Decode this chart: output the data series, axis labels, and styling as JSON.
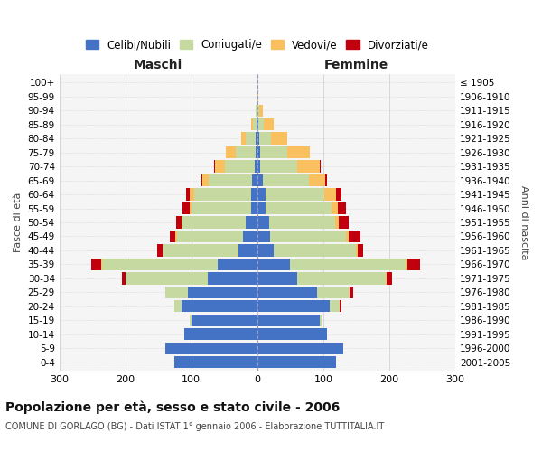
{
  "age_groups": [
    "0-4",
    "5-9",
    "10-14",
    "15-19",
    "20-24",
    "25-29",
    "30-34",
    "35-39",
    "40-44",
    "45-49",
    "50-54",
    "55-59",
    "60-64",
    "65-69",
    "70-74",
    "75-79",
    "80-84",
    "85-89",
    "90-94",
    "95-99",
    "100+"
  ],
  "birth_years": [
    "2001-2005",
    "1996-2000",
    "1991-1995",
    "1986-1990",
    "1981-1985",
    "1976-1980",
    "1971-1975",
    "1966-1970",
    "1961-1965",
    "1956-1960",
    "1951-1955",
    "1946-1950",
    "1941-1945",
    "1936-1940",
    "1931-1935",
    "1926-1930",
    "1921-1925",
    "1916-1920",
    "1911-1915",
    "1906-1910",
    "≤ 1905"
  ],
  "male": {
    "celibi": [
      125,
      140,
      110,
      100,
      115,
      105,
      75,
      60,
      28,
      22,
      18,
      10,
      10,
      8,
      4,
      3,
      2,
      1,
      0,
      0,
      0
    ],
    "coniugati": [
      0,
      0,
      0,
      2,
      10,
      35,
      125,
      175,
      115,
      100,
      95,
      90,
      85,
      65,
      45,
      30,
      15,
      5,
      2,
      0,
      0
    ],
    "vedovi": [
      0,
      0,
      0,
      0,
      0,
      0,
      0,
      1,
      1,
      2,
      2,
      3,
      8,
      10,
      15,
      15,
      8,
      3,
      1,
      0,
      0
    ],
    "divorziati": [
      0,
      0,
      0,
      0,
      0,
      0,
      5,
      15,
      8,
      8,
      8,
      10,
      5,
      1,
      1,
      0,
      0,
      0,
      0,
      0,
      0
    ]
  },
  "female": {
    "nubili": [
      120,
      130,
      105,
      95,
      110,
      90,
      60,
      50,
      25,
      20,
      18,
      12,
      12,
      8,
      5,
      5,
      3,
      2,
      0,
      0,
      0
    ],
    "coniugate": [
      0,
      0,
      0,
      3,
      15,
      50,
      135,
      175,
      125,
      115,
      100,
      100,
      90,
      70,
      55,
      40,
      18,
      8,
      3,
      0,
      0
    ],
    "vedove": [
      0,
      0,
      0,
      0,
      0,
      0,
      1,
      2,
      2,
      3,
      5,
      10,
      18,
      25,
      35,
      35,
      25,
      15,
      5,
      1,
      0
    ],
    "divorziate": [
      0,
      0,
      0,
      0,
      2,
      5,
      8,
      20,
      8,
      18,
      15,
      12,
      8,
      2,
      1,
      0,
      0,
      0,
      0,
      0,
      0
    ]
  },
  "colors": {
    "celibi": "#4472C4",
    "coniugati": "#C5D9A0",
    "vedovi": "#FAC060",
    "divorziati": "#C0000C"
  },
  "xlim": 300,
  "title": "Popolazione per età, sesso e stato civile - 2006",
  "subtitle": "COMUNE DI GORLAGO (BG) - Dati ISTAT 1° gennaio 2006 - Elaborazione TUTTITALIA.IT",
  "xlabel_left": "Maschi",
  "xlabel_right": "Femmine",
  "ylabel_left": "Fasce di età",
  "ylabel_right": "Anni di nascita",
  "legend_labels": [
    "Celibi/Nubili",
    "Coniugati/e",
    "Vedovi/e",
    "Divorziati/e"
  ],
  "bg_color": "#ffffff",
  "plot_bg_color": "#f5f5f5",
  "grid_color": "#cccccc"
}
